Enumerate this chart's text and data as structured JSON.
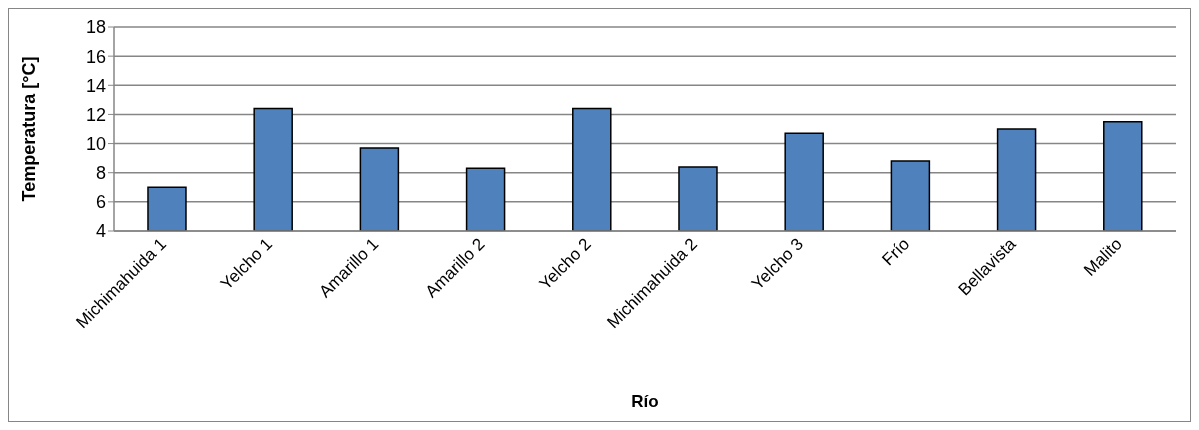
{
  "chart_data": {
    "type": "bar",
    "xlabel": "Río",
    "ylabel": "Temperatura [°C]",
    "categories": [
      "Michimahuida 1",
      "Yelcho 1",
      "Amarillo 1",
      "Amarillo 2",
      "Yelcho 2",
      "Michimahuida 2",
      "Yelcho 3",
      "Frío",
      "Bellavista",
      "Malito"
    ],
    "values": [
      7.0,
      12.4,
      9.7,
      8.3,
      12.4,
      8.4,
      10.7,
      8.8,
      11.0,
      11.5
    ],
    "color": "#4f81bd",
    "ylim": [
      4,
      18
    ],
    "yticks": [
      4,
      6,
      8,
      10,
      12,
      14,
      16,
      18
    ],
    "grid": "y"
  }
}
